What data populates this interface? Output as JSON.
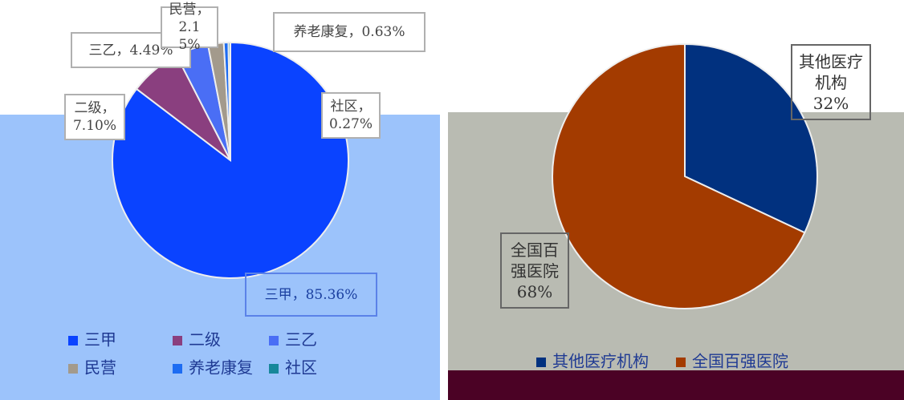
{
  "chart_data": [
    {
      "type": "pie",
      "categories": [
        "三甲",
        "二级",
        "三乙",
        "民营",
        "养老康复",
        "社区"
      ],
      "values": [
        85.36,
        7.1,
        4.49,
        2.15,
        0.63,
        0.27
      ],
      "value_labels": [
        "三甲，85.36%",
        "二级，7.10%",
        "三乙，4.49%",
        "民营，2.15%",
        "养老康复，0.63%",
        "社区，0.27%"
      ],
      "colors": [
        "#0a43ff",
        "#8a3f7f",
        "#4a6ef5",
        "#a39a8c",
        "#1d6cf2",
        "#17879a"
      ]
    },
    {
      "type": "pie",
      "categories": [
        "其他医疗机构",
        "全国百强医院"
      ],
      "values": [
        32,
        68
      ],
      "value_labels": [
        "32%",
        "68%"
      ],
      "colors": [
        "#01317f",
        "#a33b00"
      ]
    }
  ]
}
